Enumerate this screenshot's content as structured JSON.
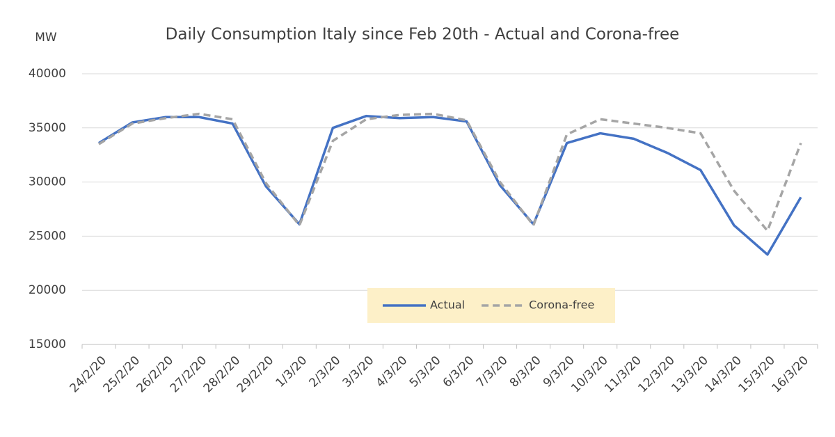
{
  "chart_data": {
    "type": "line",
    "title": "Daily Consumption Italy since Feb 20th - Actual and Corona-free",
    "y_label": "MW",
    "categories": [
      "24/2/20",
      "25/2/20",
      "26/2/20",
      "27/2/20",
      "28/2/20",
      "29/2/20",
      "1/3/20",
      "2/3/20",
      "3/3/20",
      "4/3/20",
      "5/3/20",
      "6/3/20",
      "7/3/20",
      "8/3/20",
      "9/3/20",
      "10/3/20",
      "11/3/20",
      "12/3/20",
      "13/3/20",
      "14/3/20",
      "15/3/20",
      "16/3/20"
    ],
    "series": [
      {
        "name": "Actual",
        "color": "#4472c4",
        "dashed": false,
        "values": [
          33600,
          35500,
          36000,
          36000,
          35400,
          29600,
          26100,
          35000,
          36100,
          35900,
          36000,
          35600,
          29700,
          26100,
          33600,
          34500,
          34000,
          32700,
          31100,
          26000,
          23300,
          28600
        ]
      },
      {
        "name": "Corona-free",
        "color": "#a5a5a5",
        "dashed": true,
        "values": [
          33500,
          35400,
          35900,
          36300,
          35800,
          29900,
          26000,
          33800,
          35800,
          36200,
          36300,
          35700,
          30000,
          26000,
          34400,
          35800,
          35400,
          35000,
          34500,
          29200,
          25500,
          33600
        ]
      }
    ],
    "ylim": [
      15000,
      40000
    ],
    "yticks": [
      15000,
      20000,
      25000,
      30000,
      35000,
      40000
    ],
    "grid": true
  }
}
